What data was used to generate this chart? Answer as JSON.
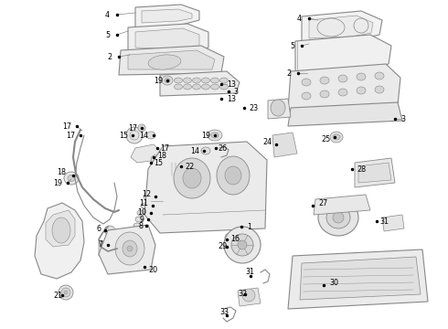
{
  "bg_color": "#ffffff",
  "line_color": "#888888",
  "label_color": "#000000",
  "figsize": [
    4.9,
    3.6
  ],
  "dpi": 100,
  "lw_thin": 0.5,
  "lw_med": 0.8,
  "lw_thick": 1.0
}
